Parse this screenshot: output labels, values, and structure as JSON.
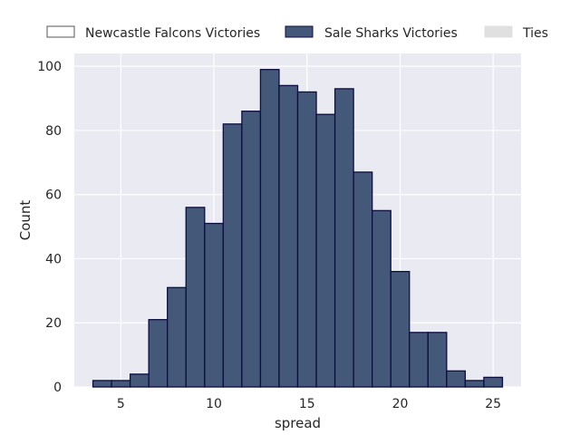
{
  "chart_data": {
    "type": "bar",
    "title": "",
    "xlabel": "spread",
    "ylabel": "Count",
    "xlim": [
      2.5,
      26.5
    ],
    "ylim": [
      0,
      104
    ],
    "xticks": [
      5,
      10,
      15,
      20,
      25
    ],
    "yticks": [
      0,
      20,
      40,
      60,
      80,
      100
    ],
    "grid": true,
    "legend_position": "top",
    "bin_width": 1,
    "series": [
      {
        "name": "Newcastle Falcons Victories",
        "color": "#ffffff",
        "edge_color": "#555555",
        "x": [],
        "values": []
      },
      {
        "name": "Sale Sharks Victories",
        "color": "#44587a",
        "edge_color": "#0d0d3f",
        "x": [
          3.5,
          4.5,
          5.5,
          6.5,
          7.5,
          8.5,
          9.5,
          10.5,
          11.5,
          12.5,
          13.5,
          14.5,
          15.5,
          16.5,
          17.5,
          18.5,
          19.5,
          20.5,
          21.5,
          22.5,
          23.5,
          24.5
        ],
        "values": [
          2,
          2,
          4,
          21,
          31,
          56,
          51,
          82,
          86,
          99,
          94,
          92,
          85,
          93,
          67,
          55,
          36,
          17,
          17,
          5,
          2,
          3
        ]
      },
      {
        "name": "Ties",
        "color": "#e0e0e0",
        "edge_color": "#e0e0e0",
        "x": [],
        "values": []
      }
    ]
  }
}
